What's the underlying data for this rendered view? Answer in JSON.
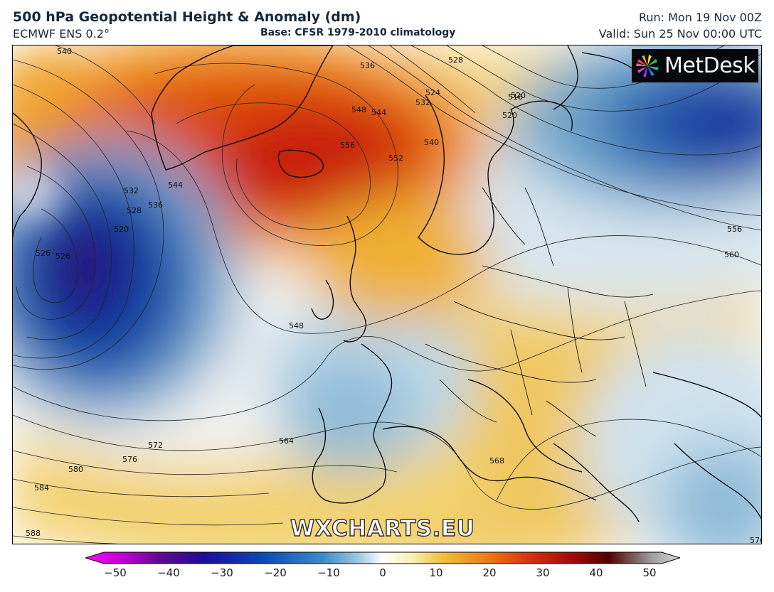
{
  "header": {
    "title": "500 hPa Geopotential Height & Anomaly (dm)",
    "model": "ECMWF ENS 0.2°",
    "base": "Base: CFSR 1979-2010 climatology",
    "run": "Run: Mon 19 Nov 00Z",
    "valid": "Valid: Sun 25 Nov 00:00 UTC"
  },
  "logo": {
    "text": "MetDesk",
    "icon": "metdesk-pinwheel-icon"
  },
  "watermark": "WXCHARTS.EU",
  "colorbar": {
    "ticks": [
      "−50",
      "−40",
      "−30",
      "−20",
      "−10",
      "0",
      "10",
      "20",
      "30",
      "40",
      "50"
    ],
    "colors": [
      "#ff00ff",
      "#b400c8",
      "#5a0a8c",
      "#1e0a9a",
      "#0a4bb4",
      "#3c8cc8",
      "#a0c8e0",
      "#ffffff",
      "#f8f0b0",
      "#f0c040",
      "#e87814",
      "#d23010",
      "#a00a0a",
      "#500000",
      "#b4b4b4"
    ]
  },
  "contour_labels": [
    "540",
    "536",
    "532",
    "528",
    "524",
    "520",
    "516",
    "520",
    "540",
    "544",
    "548",
    "556",
    "552",
    "544",
    "536",
    "532",
    "528",
    "520",
    "526",
    "526",
    "548",
    "556",
    "560",
    "564",
    "568",
    "572",
    "576",
    "580",
    "584",
    "588",
    "576"
  ]
}
